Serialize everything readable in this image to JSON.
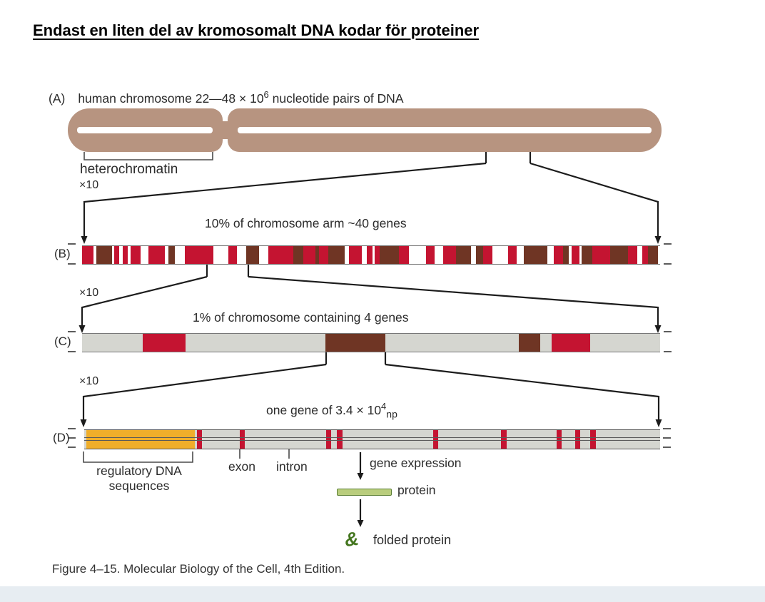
{
  "title": "Endast en liten del av kromosomalt DNA kodar för proteiner",
  "palette": {
    "chromosome_tan": "#b79480",
    "gene_red": "#c41431",
    "gene_brown": "#6f3524",
    "bar_gray": "#d5d6d0",
    "regulatory_orange": "#f0ae2a",
    "protein_green_fill": "#b9cd7d",
    "protein_green_border": "#5c7f35",
    "folded_protein_green": "#44761f",
    "footer_band": "#e7edf2"
  },
  "figure": {
    "zoom_label": "×10",
    "panel_a": {
      "label": "(A)",
      "heading_prefix": "human chromosome 22—48 × 10",
      "heading_exponent": "6",
      "heading_suffix": " nucleotide pairs of DNA",
      "bracket_label": "heterochromatin"
    },
    "panel_b": {
      "label": "(B)",
      "heading": "10% of chromosome arm ~40 genes",
      "segments": [
        {
          "c": "red",
          "w": 1.9
        },
        {
          "c": "white",
          "w": 0.5
        },
        {
          "c": "brown",
          "w": 2.6
        },
        {
          "c": "white",
          "w": 0.4
        },
        {
          "c": "red",
          "w": 0.8
        },
        {
          "c": "white",
          "w": 0.6
        },
        {
          "c": "red",
          "w": 0.8
        },
        {
          "c": "white",
          "w": 0.5
        },
        {
          "c": "red",
          "w": 1.7
        },
        {
          "c": "white",
          "w": 1.3
        },
        {
          "c": "red",
          "w": 2.7
        },
        {
          "c": "white",
          "w": 0.6
        },
        {
          "c": "brown",
          "w": 1.1
        },
        {
          "c": "white",
          "w": 1.6
        },
        {
          "c": "red",
          "w": 4.8
        },
        {
          "c": "white",
          "w": 2.5
        },
        {
          "c": "red",
          "w": 1.5
        },
        {
          "c": "white",
          "w": 1.5
        },
        {
          "c": "brown",
          "w": 2.1
        },
        {
          "c": "white",
          "w": 1.6
        },
        {
          "c": "red",
          "w": 4.2
        },
        {
          "c": "brown",
          "w": 1.6
        },
        {
          "c": "red",
          "w": 2.1
        },
        {
          "c": "brown",
          "w": 0.6
        },
        {
          "c": "red",
          "w": 1.5
        },
        {
          "c": "brown",
          "w": 2.7
        },
        {
          "c": "white",
          "w": 0.8
        },
        {
          "c": "red",
          "w": 2.1
        },
        {
          "c": "white",
          "w": 0.8
        },
        {
          "c": "red",
          "w": 1.0
        },
        {
          "c": "white",
          "w": 0.4
        },
        {
          "c": "red",
          "w": 0.8
        },
        {
          "c": "brown",
          "w": 3.2
        },
        {
          "c": "red",
          "w": 1.6
        },
        {
          "c": "white",
          "w": 2.9
        },
        {
          "c": "red",
          "w": 1.4
        },
        {
          "c": "white",
          "w": 1.5
        },
        {
          "c": "red",
          "w": 2.1
        },
        {
          "c": "brown",
          "w": 2.5
        },
        {
          "c": "white",
          "w": 0.9
        },
        {
          "c": "brown",
          "w": 1.2
        },
        {
          "c": "red",
          "w": 1.5
        },
        {
          "c": "white",
          "w": 2.6
        },
        {
          "c": "red",
          "w": 1.4
        },
        {
          "c": "white",
          "w": 1.2
        },
        {
          "c": "brown",
          "w": 4.0
        },
        {
          "c": "white",
          "w": 1.0
        },
        {
          "c": "red",
          "w": 1.6
        },
        {
          "c": "brown",
          "w": 1.0
        },
        {
          "c": "white",
          "w": 0.4
        },
        {
          "c": "red",
          "w": 1.3
        },
        {
          "c": "white",
          "w": 0.4
        },
        {
          "c": "brown",
          "w": 1.8
        },
        {
          "c": "red",
          "w": 3.0
        },
        {
          "c": "brown",
          "w": 2.9
        },
        {
          "c": "red",
          "w": 1.6
        },
        {
          "c": "white",
          "w": 0.8
        },
        {
          "c": "red",
          "w": 1.0
        },
        {
          "c": "brown",
          "w": 1.6
        },
        {
          "c": "white",
          "w": 0.4
        }
      ]
    },
    "panel_c": {
      "label": "(C)",
      "heading": "1% of chromosome containing 4 genes",
      "segments": [
        {
          "c": "gray",
          "w": 10.5
        },
        {
          "c": "red",
          "w": 7.4
        },
        {
          "c": "gray",
          "w": 24.2
        },
        {
          "c": "brown",
          "w": 10.4
        },
        {
          "c": "gray",
          "w": 23.1
        },
        {
          "c": "brown",
          "w": 3.7
        },
        {
          "c": "gray",
          "w": 1.9
        },
        {
          "c": "red",
          "w": 6.7
        },
        {
          "c": "gray",
          "w": 12.1
        }
      ]
    },
    "panel_d": {
      "label": "(D)",
      "heading_prefix": "one gene of 3.4 × 10",
      "heading_exponent": "4",
      "heading_unit": "np",
      "regulatory_block": {
        "left_pct": 0.4,
        "width_pct": 18.8
      },
      "exon_marks_left_pct": [
        19.6,
        27.0,
        42.0,
        43.9,
        60.6,
        72.4,
        82.0,
        85.2,
        87.9
      ],
      "exon_mark_width_pct": 0.9,
      "regulatory_label_line1": "regulatory DNA",
      "regulatory_label_line2": "sequences",
      "exon_label": "exon",
      "intron_label": "intron",
      "gene_expression_label": "gene expression",
      "protein_label": "protein",
      "folded_glyph": "&",
      "folded_protein_label": "folded protein"
    },
    "caption": "Figure 4–15. Molecular Biology of the Cell, 4th Edition."
  }
}
